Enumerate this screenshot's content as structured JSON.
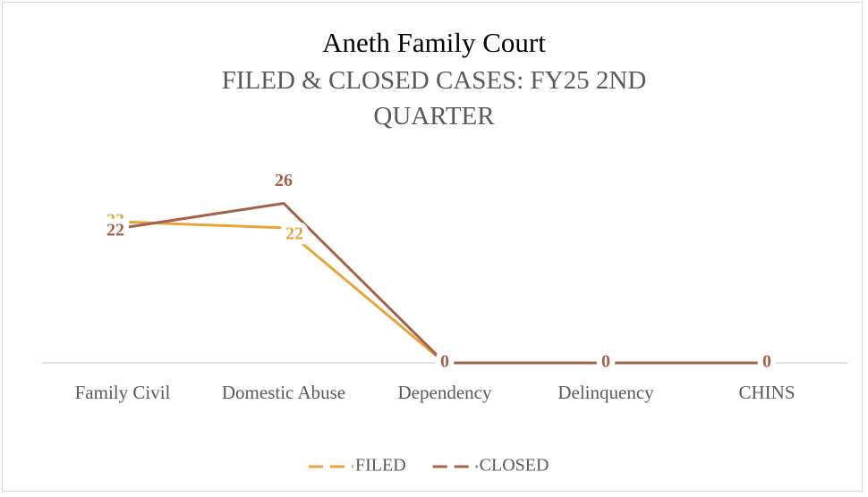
{
  "chart_data": {
    "type": "line",
    "title": "Aneth Family Court",
    "subtitle": "FILED & CLOSED CASES: FY25 2ND QUARTER",
    "categories": [
      "Family Civil",
      "Domestic Abuse",
      "Dependency",
      "Delinquency",
      "CHINS"
    ],
    "series": [
      {
        "name": "FILED",
        "color": "#e9a43b",
        "values": [
          23,
          22,
          0,
          0,
          0
        ]
      },
      {
        "name": "CLOSED",
        "color": "#a5614a",
        "values": [
          22,
          26,
          0,
          0,
          0
        ]
      }
    ],
    "ylim": [
      0,
      30
    ],
    "legend": "bottom"
  }
}
